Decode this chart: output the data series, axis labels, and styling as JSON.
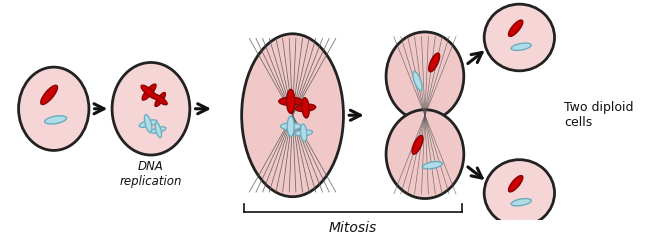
{
  "bg_color": "#ffffff",
  "cell_fill": "#f5d5d5",
  "cell_edge": "#222222",
  "spindle_fill": "#f0c8c8",
  "chrom_red": "#cc0000",
  "chrom_red_edge": "#880000",
  "chrom_blue": "#b0dce8",
  "chrom_blue_edge": "#6aacbe",
  "fiber_color": "#555555",
  "arrow_color": "#111111",
  "text_color": "#111111",
  "label_dna": "DNA\nreplication",
  "label_mitosis": "Mitosis",
  "label_result": "Two diploid\ncells",
  "font_size": 8.5,
  "fig_width": 6.5,
  "fig_height": 2.36,
  "dpi": 100
}
